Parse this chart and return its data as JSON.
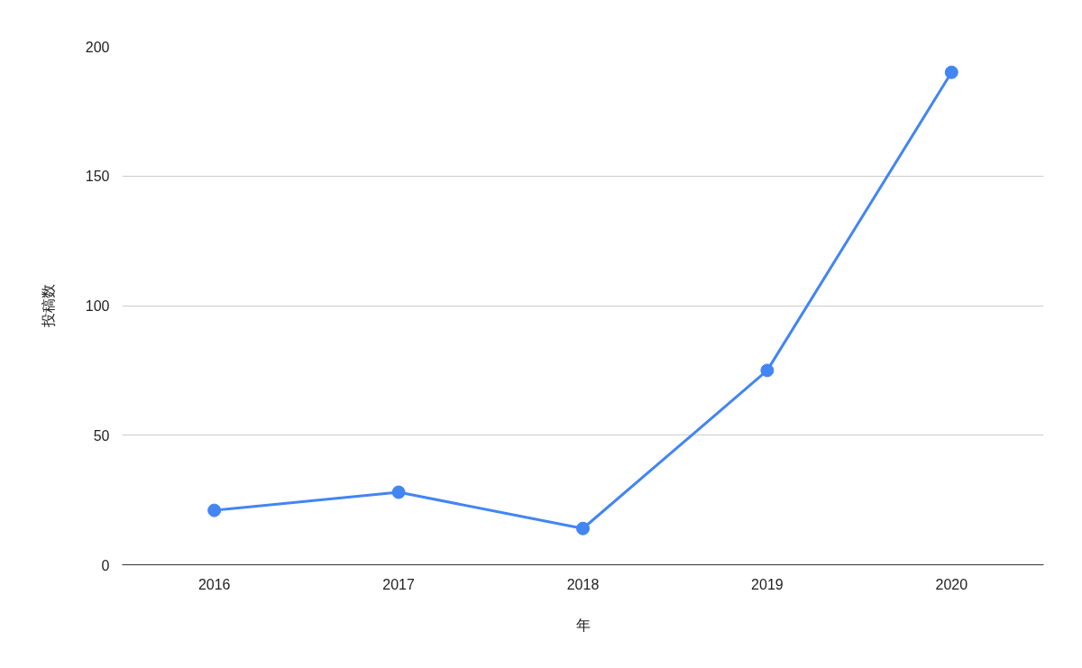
{
  "chart_data": {
    "type": "line",
    "xlabel": "年",
    "ylabel": "投稿数",
    "categories": [
      "2016",
      "2017",
      "2018",
      "2019",
      "2020"
    ],
    "series": [
      {
        "color": "#4285f4",
        "values": [
          21,
          28,
          14,
          75,
          190
        ]
      }
    ],
    "ylim": [
      0,
      200
    ],
    "yticks": [
      0,
      50,
      100,
      150,
      200
    ],
    "grid": "y",
    "marker": "circle",
    "line_style": "solid"
  }
}
